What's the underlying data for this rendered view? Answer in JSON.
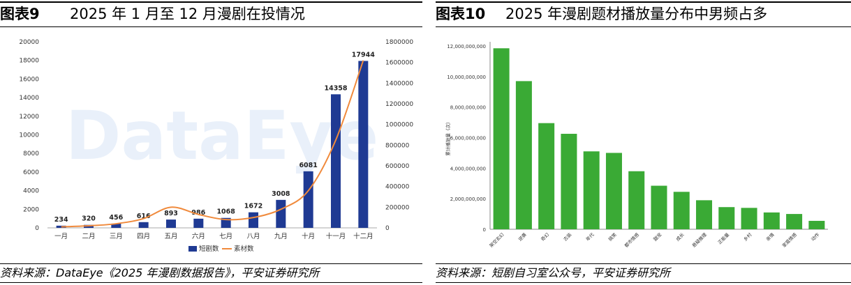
{
  "left": {
    "fig_label": "图表9",
    "fig_title": "2025 年 1 月至 12 月漫剧在投情况",
    "source": "资料来源：DataEye《2025 年漫剧数据报告》，平安证券研究所",
    "watermark": "DataEye"
  },
  "right": {
    "fig_label": "图表10",
    "fig_title": "2025 年漫剧题材播放量分布中男频占多",
    "source": "资料来源：短剧自习室公众号，平安证券研究所"
  },
  "chart_data": [
    {
      "type": "bar",
      "title": "",
      "categories": [
        "一月",
        "二月",
        "三月",
        "四月",
        "五月",
        "六月",
        "七月",
        "八月",
        "九月",
        "十月",
        "十一月",
        "十二月"
      ],
      "series": [
        {
          "name": "短剧数",
          "type": "bar",
          "axis": "left",
          "color": "#1f3a93",
          "values": [
            234,
            320,
            456,
            616,
            893,
            986,
            1068,
            1672,
            3008,
            6081,
            14358,
            17944
          ]
        },
        {
          "name": "素材数",
          "type": "line",
          "axis": "right",
          "color": "#f08a3c",
          "values": [
            10000,
            20000,
            40000,
            90000,
            200000,
            130000,
            80000,
            100000,
            180000,
            360000,
            850000,
            1620000
          ]
        }
      ],
      "y_left": {
        "lim": [
          0,
          20000
        ],
        "ticks": [
          0,
          2000,
          4000,
          6000,
          8000,
          10000,
          12000,
          14000,
          16000,
          18000,
          20000
        ]
      },
      "y_right": {
        "lim": [
          0,
          1800000
        ],
        "ticks": [
          0,
          200000,
          400000,
          600000,
          800000,
          1000000,
          1200000,
          1400000,
          1600000,
          1800000
        ]
      },
      "legend_position": "bottom"
    },
    {
      "type": "bar",
      "title": "",
      "ylabel": "累计播放量（次）",
      "categories": [
        "架空玄幻",
        "逆袭",
        "奇幻",
        "古装",
        "年代",
        "搞笑",
        "都市情感",
        "甜宠",
        "成长",
        "悬疑推理",
        "正能量",
        "乡村",
        "亲情",
        "家庭情感",
        "动作"
      ],
      "series": [
        {
          "name": "",
          "color": "#3aaa35",
          "values": [
            11850000000,
            9700000000,
            6950000000,
            6250000000,
            5100000000,
            5000000000,
            3800000000,
            2850000000,
            2450000000,
            1900000000,
            1450000000,
            1400000000,
            1100000000,
            1000000000,
            550000000
          ]
        }
      ],
      "y": {
        "lim": [
          0,
          12000000000
        ],
        "ticks": [
          0,
          2000000000,
          4000000000,
          6000000000,
          8000000000,
          10000000000,
          12000000000
        ],
        "tick_labels": [
          "0",
          "2,000,000,000",
          "4,000,000,000",
          "6,000,000,000",
          "8,000,000,000",
          "10,000,000,000",
          "12,000,000,000"
        ]
      },
      "grid": false
    }
  ]
}
